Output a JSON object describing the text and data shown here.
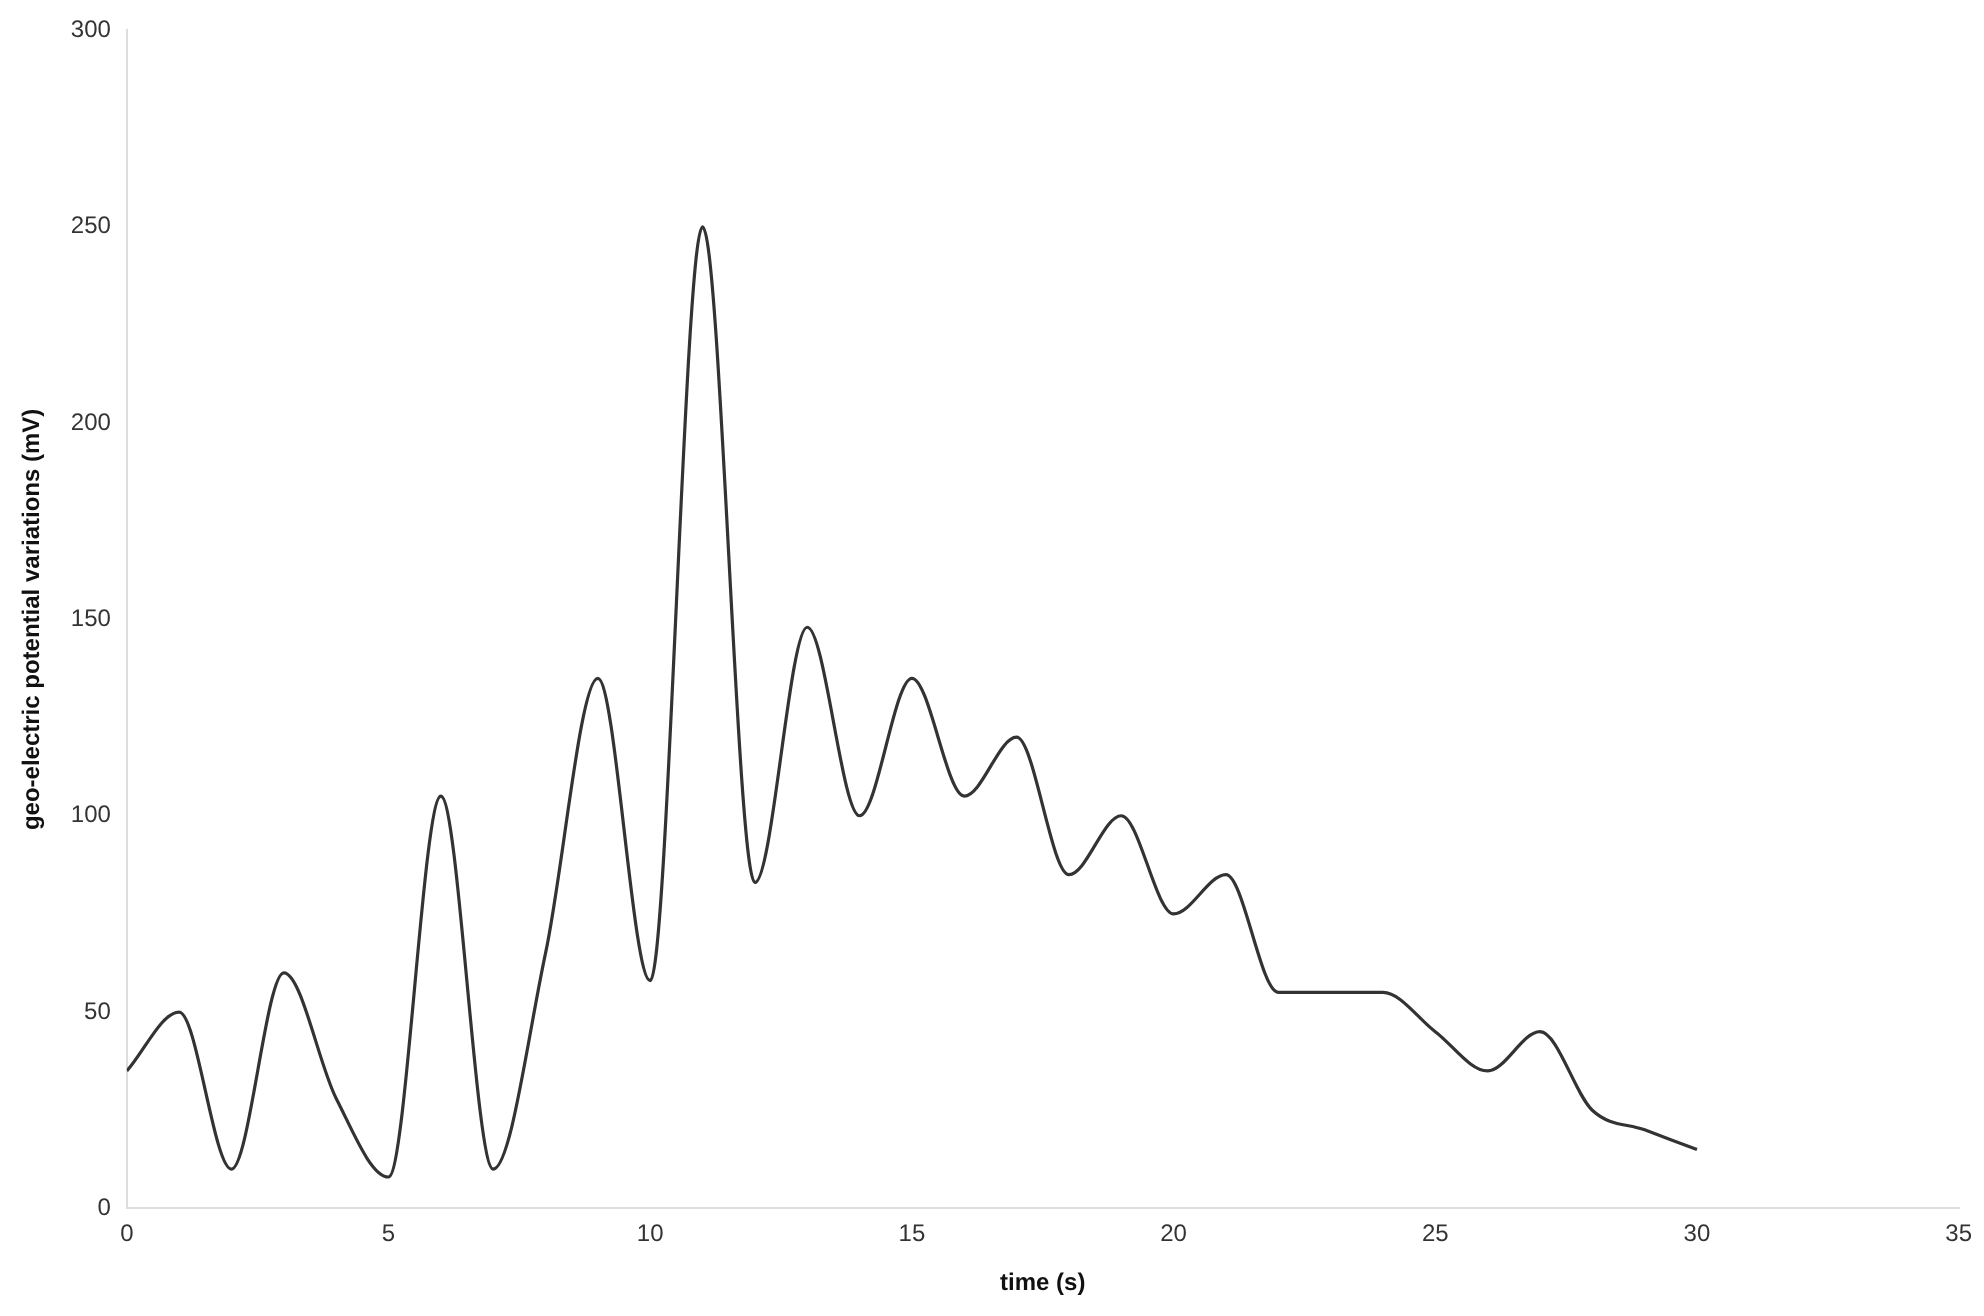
{
  "chart_data": {
    "type": "line",
    "xlabel": "time (s)",
    "ylabel": "geo-electric potential variations (mV)",
    "x": [
      0,
      1,
      2,
      3,
      4,
      5,
      6,
      7,
      8,
      9,
      10,
      11,
      12,
      13,
      14,
      15,
      16,
      17,
      18,
      19,
      20,
      21,
      22,
      23,
      24,
      25,
      26,
      27,
      28,
      29,
      30
    ],
    "series": [
      {
        "color": "#333333",
        "values": [
          35,
          50,
          10,
          60,
          28,
          8,
          105,
          10,
          65,
          135,
          58,
          250,
          83,
          148,
          100,
          135,
          105,
          120,
          85,
          100,
          75,
          85,
          55,
          55,
          55,
          45,
          35,
          45,
          25,
          20,
          15
        ]
      }
    ],
    "xlim": [
      0,
      35
    ],
    "xticks": [
      0,
      5,
      10,
      15,
      20,
      25,
      30,
      35
    ],
    "ylim": [
      0,
      300
    ],
    "yticks": [
      0,
      50,
      100,
      150,
      200,
      250,
      300
    ],
    "grid": false,
    "legend": false,
    "marker": "none",
    "line_style": "solid"
  }
}
